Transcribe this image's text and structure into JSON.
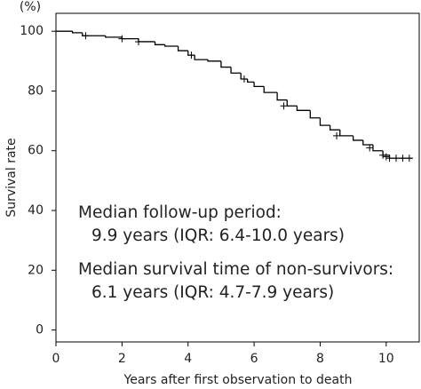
{
  "chart_data": {
    "type": "step",
    "y_unit_label": "(%)",
    "xlabel": "Years after first observation to death",
    "ylabel": "Survival rate",
    "x": [
      0,
      0.5,
      0.8,
      1.5,
      2,
      2.5,
      3,
      3.3,
      3.7,
      4,
      4.2,
      4.6,
      5,
      5.3,
      5.6,
      5.8,
      6,
      6.3,
      6.7,
      7,
      7.3,
      7.7,
      8,
      8.3,
      8.6,
      9,
      9.3,
      9.6,
      9.9,
      10.1,
      10.8
    ],
    "values": [
      100,
      99.5,
      98.5,
      98,
      97.5,
      96.5,
      95.5,
      95,
      93.5,
      92,
      90.5,
      90,
      88,
      86,
      84,
      83,
      81.5,
      79.5,
      77,
      75,
      73.5,
      71,
      68.5,
      67,
      65,
      63.5,
      62,
      60,
      58.5,
      57.5,
      57.5
    ],
    "censor_x": [
      0.9,
      2,
      2.5,
      4.1,
      5.7,
      6.9,
      8.5,
      9.5,
      9.9,
      10,
      10.1,
      10.3,
      10.5,
      10.7
    ],
    "censor_values": [
      98.5,
      97.5,
      96.5,
      92,
      84,
      75,
      65,
      61,
      58.5,
      58,
      57.5,
      57.5,
      57.5,
      57.5
    ],
    "color": "#000000",
    "xlim": [
      0,
      11
    ],
    "ylim": [
      -4,
      106
    ],
    "xticks": [
      0,
      2,
      4,
      6,
      8,
      10
    ],
    "yticks": [
      0,
      20,
      40,
      60,
      80,
      100
    ],
    "annotations": [
      "Median follow-up period:",
      "9.9 years (IQR: 6.4-10.0 years)",
      "Median survival time of non-survivors:",
      "6.1 years (IQR: 4.7-7.9 years)"
    ]
  }
}
